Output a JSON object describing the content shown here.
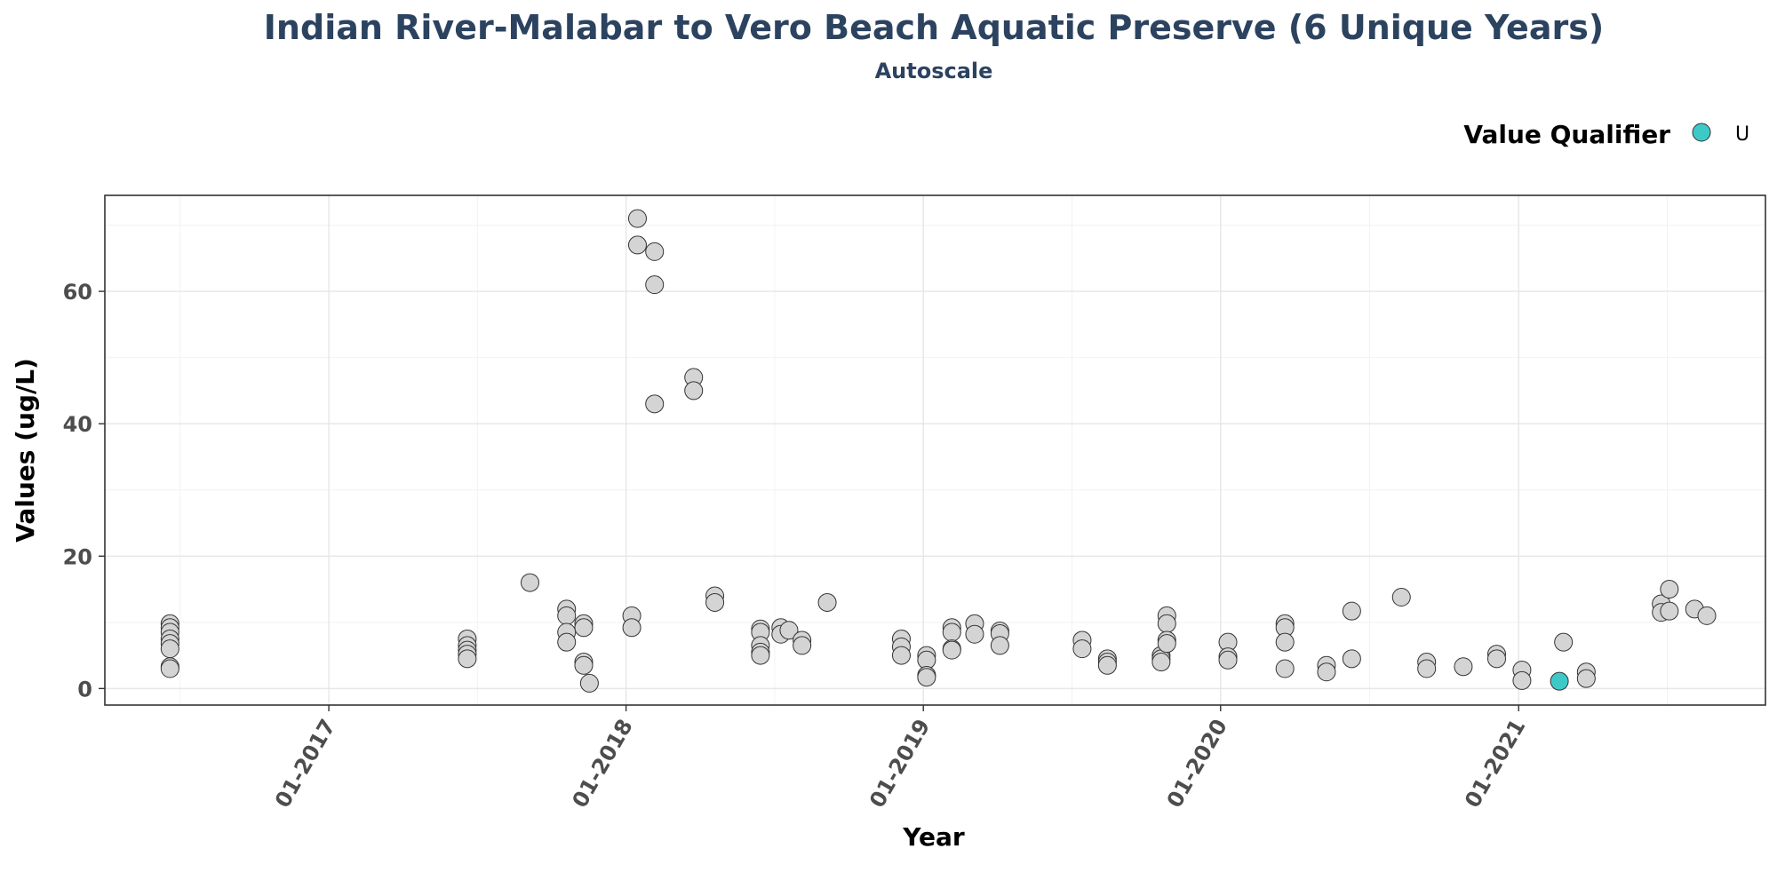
{
  "chart_data": {
    "type": "scatter",
    "title": "Indian River-Malabar to Vero Beach Aquatic Preserve (6 Unique Years)",
    "subtitle": "Autoscale",
    "xlabel": "Year",
    "ylabel": "Values (ug/L)",
    "x_axis_type": "date",
    "xlim": [
      "2016-04-01",
      "2021-10-31"
    ],
    "ylim": [
      -2.5,
      74.5
    ],
    "x_ticks": [
      {
        "date": "2017-01-01",
        "label": "01-2017"
      },
      {
        "date": "2018-01-01",
        "label": "01-2018"
      },
      {
        "date": "2019-01-01",
        "label": "01-2019"
      },
      {
        "date": "2020-01-01",
        "label": "01-2020"
      },
      {
        "date": "2021-01-01",
        "label": "01-2021"
      }
    ],
    "y_ticks": [
      0,
      20,
      40,
      60
    ],
    "grid": true,
    "legend": {
      "title": "Value Qualifier",
      "placement": "top-right",
      "entries": [
        {
          "label": "U",
          "color": "#3ec9c9"
        }
      ]
    },
    "colors": {
      "default_point": "#d4d4d4",
      "qualifier_U": "#3ec9c9",
      "point_outline": "#333333"
    },
    "series": [
      {
        "qualifier": "",
        "points": [
          {
            "x": "2016-06-20",
            "y": 9.8
          },
          {
            "x": "2016-06-20",
            "y": 9.2
          },
          {
            "x": "2016-06-20",
            "y": 8.5
          },
          {
            "x": "2016-06-20",
            "y": 7.5
          },
          {
            "x": "2016-06-20",
            "y": 6.8
          },
          {
            "x": "2016-06-20",
            "y": 6.0
          },
          {
            "x": "2016-06-20",
            "y": 3.3
          },
          {
            "x": "2016-06-20",
            "y": 3.0
          },
          {
            "x": "2017-06-20",
            "y": 7.5
          },
          {
            "x": "2017-06-20",
            "y": 6.5
          },
          {
            "x": "2017-06-20",
            "y": 5.8
          },
          {
            "x": "2017-06-20",
            "y": 5.2
          },
          {
            "x": "2017-06-20",
            "y": 4.5
          },
          {
            "x": "2017-09-05",
            "y": 16.0
          },
          {
            "x": "2017-10-20",
            "y": 12.0
          },
          {
            "x": "2017-10-20",
            "y": 11.0
          },
          {
            "x": "2017-10-20",
            "y": 8.5
          },
          {
            "x": "2017-10-20",
            "y": 7.0
          },
          {
            "x": "2017-11-10",
            "y": 9.8
          },
          {
            "x": "2017-11-10",
            "y": 9.2
          },
          {
            "x": "2017-11-10",
            "y": 4.0
          },
          {
            "x": "2017-11-10",
            "y": 3.5
          },
          {
            "x": "2017-11-17",
            "y": 0.8
          },
          {
            "x": "2018-01-08",
            "y": 11.0
          },
          {
            "x": "2018-01-08",
            "y": 9.2
          },
          {
            "x": "2018-01-15",
            "y": 71.0
          },
          {
            "x": "2018-01-15",
            "y": 67.0
          },
          {
            "x": "2018-02-05",
            "y": 66.0
          },
          {
            "x": "2018-02-05",
            "y": 61.0
          },
          {
            "x": "2018-02-05",
            "y": 43.0
          },
          {
            "x": "2018-03-25",
            "y": 47.0
          },
          {
            "x": "2018-03-25",
            "y": 45.0
          },
          {
            "x": "2018-04-20",
            "y": 14.0
          },
          {
            "x": "2018-04-20",
            "y": 13.0
          },
          {
            "x": "2018-06-15",
            "y": 9.0
          },
          {
            "x": "2018-06-15",
            "y": 8.5
          },
          {
            "x": "2018-06-15",
            "y": 6.5
          },
          {
            "x": "2018-06-15",
            "y": 5.5
          },
          {
            "x": "2018-06-15",
            "y": 5.0
          },
          {
            "x": "2018-07-10",
            "y": 9.2
          },
          {
            "x": "2018-07-10",
            "y": 8.2
          },
          {
            "x": "2018-07-20",
            "y": 8.8
          },
          {
            "x": "2018-08-05",
            "y": 7.3
          },
          {
            "x": "2018-08-05",
            "y": 6.5
          },
          {
            "x": "2018-09-05",
            "y": 13.0
          },
          {
            "x": "2018-12-05",
            "y": 7.5
          },
          {
            "x": "2018-12-05",
            "y": 6.3
          },
          {
            "x": "2018-12-05",
            "y": 5.0
          },
          {
            "x": "2019-01-05",
            "y": 5.0
          },
          {
            "x": "2019-01-05",
            "y": 4.3
          },
          {
            "x": "2019-01-05",
            "y": 2.0
          },
          {
            "x": "2019-01-05",
            "y": 1.7
          },
          {
            "x": "2019-02-05",
            "y": 9.2
          },
          {
            "x": "2019-02-05",
            "y": 8.5
          },
          {
            "x": "2019-02-05",
            "y": 6.0
          },
          {
            "x": "2019-02-05",
            "y": 5.8
          },
          {
            "x": "2019-03-05",
            "y": 9.8
          },
          {
            "x": "2019-03-05",
            "y": 8.2
          },
          {
            "x": "2019-04-05",
            "y": 8.7
          },
          {
            "x": "2019-04-05",
            "y": 8.3
          },
          {
            "x": "2019-04-05",
            "y": 6.5
          },
          {
            "x": "2019-07-15",
            "y": 7.3
          },
          {
            "x": "2019-07-15",
            "y": 6.0
          },
          {
            "x": "2019-08-15",
            "y": 4.5
          },
          {
            "x": "2019-08-15",
            "y": 4.0
          },
          {
            "x": "2019-08-15",
            "y": 3.5
          },
          {
            "x": "2019-10-20",
            "y": 5.0
          },
          {
            "x": "2019-10-20",
            "y": 4.5
          },
          {
            "x": "2019-10-20",
            "y": 4.0
          },
          {
            "x": "2019-10-27",
            "y": 11.0
          },
          {
            "x": "2019-10-27",
            "y": 9.8
          },
          {
            "x": "2019-10-27",
            "y": 7.3
          },
          {
            "x": "2019-10-27",
            "y": 6.8
          },
          {
            "x": "2020-01-10",
            "y": 7.0
          },
          {
            "x": "2020-01-10",
            "y": 4.8
          },
          {
            "x": "2020-01-10",
            "y": 4.3
          },
          {
            "x": "2020-03-20",
            "y": 9.8
          },
          {
            "x": "2020-03-20",
            "y": 9.2
          },
          {
            "x": "2020-03-20",
            "y": 7.0
          },
          {
            "x": "2020-03-20",
            "y": 3.0
          },
          {
            "x": "2020-05-10",
            "y": 3.5
          },
          {
            "x": "2020-05-10",
            "y": 2.5
          },
          {
            "x": "2020-06-10",
            "y": 11.7
          },
          {
            "x": "2020-06-10",
            "y": 4.5
          },
          {
            "x": "2020-08-10",
            "y": 13.8
          },
          {
            "x": "2020-09-10",
            "y": 4.0
          },
          {
            "x": "2020-09-10",
            "y": 3.0
          },
          {
            "x": "2020-10-25",
            "y": 3.3
          },
          {
            "x": "2020-12-05",
            "y": 5.2
          },
          {
            "x": "2020-12-05",
            "y": 4.5
          },
          {
            "x": "2021-01-05",
            "y": 2.8
          },
          {
            "x": "2021-01-05",
            "y": 1.2
          },
          {
            "x": "2021-02-25",
            "y": 7.0
          },
          {
            "x": "2021-03-25",
            "y": 2.5
          },
          {
            "x": "2021-03-25",
            "y": 1.5
          },
          {
            "x": "2021-06-25",
            "y": 12.8
          },
          {
            "x": "2021-06-25",
            "y": 11.5
          },
          {
            "x": "2021-07-05",
            "y": 15.0
          },
          {
            "x": "2021-07-05",
            "y": 11.7
          },
          {
            "x": "2021-08-05",
            "y": 12.0
          },
          {
            "x": "2021-08-20",
            "y": 11.0
          }
        ]
      },
      {
        "qualifier": "U",
        "points": [
          {
            "x": "2021-02-20",
            "y": 1.1
          }
        ]
      }
    ]
  }
}
